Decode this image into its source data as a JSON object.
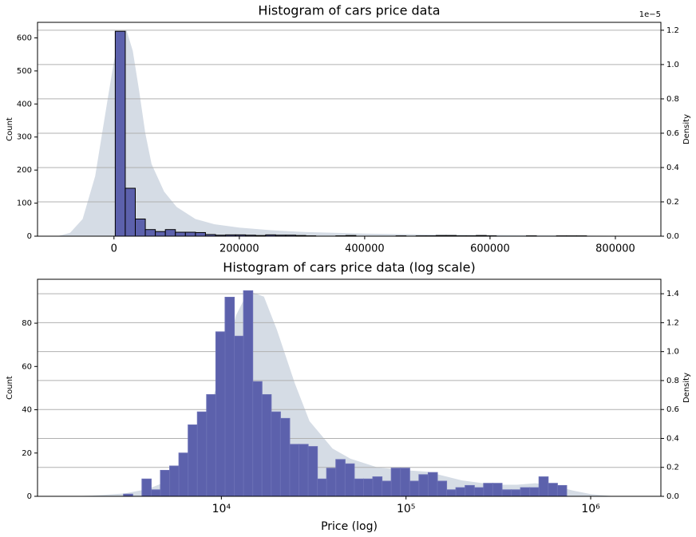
{
  "chart_data": [
    {
      "type": "histogram",
      "title": "Histogram of cars price data",
      "ylabel": "Count",
      "y2label": "Density",
      "y2_offset_label": "1e−5",
      "xscale": "linear",
      "grid": "y2",
      "bins": [
        2000,
        18000,
        34000,
        50000,
        66000,
        82000,
        98000,
        114000,
        130000,
        146000,
        162000,
        178000,
        194000,
        210000,
        226000,
        242000,
        258000,
        274000,
        290000,
        306000,
        322000,
        338000,
        354000,
        370000,
        386000,
        402000,
        418000,
        434000,
        450000,
        466000,
        482000,
        498000,
        514000,
        530000,
        546000,
        562000,
        578000,
        594000,
        610000,
        626000,
        642000,
        658000,
        674000,
        690000,
        706000,
        722000,
        738000,
        754000,
        770000,
        786000,
        802000
      ],
      "counts": [
        620,
        145,
        52,
        20,
        14,
        20,
        12,
        12,
        11,
        5,
        3,
        4,
        4,
        3,
        2,
        4,
        3,
        3,
        2,
        1,
        0,
        0,
        1,
        2,
        0,
        0,
        0,
        0,
        1,
        0,
        1,
        1,
        2,
        2,
        1,
        1,
        2,
        1,
        0,
        0,
        0,
        1,
        0,
        0,
        1,
        1,
        1,
        0,
        0,
        0
      ],
      "color": "#5c61ac",
      "edgecolor": "#000000",
      "density": {
        "x": [
          -90000,
          -70000,
          -50000,
          -30000,
          -10000,
          0,
          10000,
          20000,
          30000,
          40000,
          50000,
          60000,
          80000,
          100000,
          130000,
          160000,
          200000,
          250000,
          300000,
          400000,
          500000,
          600000,
          700000,
          800000,
          830000
        ],
        "values": [
          0,
          0.02,
          0.1,
          0.35,
          0.8,
          1.02,
          1.18,
          1.2,
          1.08,
          0.85,
          0.6,
          0.42,
          0.26,
          0.17,
          0.1,
          0.07,
          0.05,
          0.035,
          0.025,
          0.015,
          0.01,
          0.008,
          0.005,
          0.002,
          0
        ],
        "color": "#d5dce5",
        "axis": "y2"
      },
      "xlim": [
        -122000,
        872600
      ],
      "xticks": [
        0,
        200000,
        400000,
        600000,
        800000
      ],
      "ylim": [
        0,
        647
      ],
      "yticks": [
        0,
        100,
        200,
        300,
        400,
        500,
        600
      ],
      "y2lim": [
        0,
        1.246
      ],
      "y2ticks": [
        {
          "value": 0,
          "label": "0.0"
        },
        0.2,
        0.4,
        0.6,
        0.8,
        {
          "value": 1,
          "label": "1.0"
        },
        1.2
      ]
    },
    {
      "type": "histogram",
      "title": "Histogram of cars price data (log scale)",
      "ylabel": "Count",
      "y2label": "Density",
      "xlabel": "Price (log)",
      "xscale": "log",
      "grid": "y2",
      "bins": [
        2951,
        3311,
        3715,
        4169,
        4677,
        5248,
        5888,
        6607,
        7413,
        8318,
        9333,
        10471,
        11749,
        13183,
        14791,
        16596,
        18621,
        20893,
        23442,
        26303,
        29512,
        33113,
        37154,
        41687,
        46774,
        52481,
        58884,
        66069,
        74131,
        83176,
        93325,
        104713,
        117490,
        131826,
        147911,
        165959,
        186209,
        208930,
        234423,
        263027,
        295121,
        331131,
        371535,
        416869,
        467735,
        524807,
        588844,
        660693,
        741310
      ],
      "counts": [
        1,
        0,
        8,
        3,
        12,
        14,
        20,
        33,
        39,
        47,
        76,
        92,
        74,
        95,
        53,
        47,
        39,
        36,
        24,
        24,
        23,
        8,
        13,
        17,
        15,
        8,
        8,
        9,
        7,
        13,
        13,
        7,
        10,
        11,
        7,
        3,
        4,
        5,
        4,
        6,
        6,
        3,
        3,
        4,
        4,
        9,
        6,
        5
      ],
      "color": "#5c61ac",
      "edgecolor": "#6a6fb5",
      "density": {
        "x": [
          1500,
          2000,
          3000,
          4000,
          5000,
          6000,
          7000,
          8000,
          10000,
          12000,
          14000,
          17000,
          20000,
          25000,
          30000,
          40000,
          50000,
          70000,
          100000,
          130000,
          200000,
          300000,
          400000,
          500000,
          600000,
          800000,
          1000000,
          1300000,
          1600000
        ],
        "values": [
          0,
          0.005,
          0.02,
          0.05,
          0.1,
          0.18,
          0.3,
          0.5,
          0.85,
          1.25,
          1.42,
          1.38,
          1.15,
          0.78,
          0.52,
          0.33,
          0.26,
          0.2,
          0.18,
          0.17,
          0.11,
          0.08,
          0.08,
          0.09,
          0.08,
          0.04,
          0.015,
          0.002,
          0
        ],
        "color": "#d5dce5",
        "axis": "y2"
      },
      "xlim": [
        1010,
        2400000
      ],
      "xticks": [
        {
          "value": 10000,
          "label": "10⁴"
        },
        {
          "value": 100000,
          "label": "10⁵"
        },
        {
          "value": 1000000,
          "label": "10⁶"
        }
      ],
      "ylim": [
        0,
        100.3
      ],
      "yticks": [
        0,
        20,
        40,
        60,
        80
      ],
      "y2lim": [
        0,
        1.5
      ],
      "y2ticks": [
        {
          "value": 0,
          "label": "0.0"
        },
        0.2,
        0.4,
        0.6,
        0.8,
        {
          "value": 1,
          "label": "1.0"
        },
        1.2,
        1.4
      ]
    }
  ]
}
